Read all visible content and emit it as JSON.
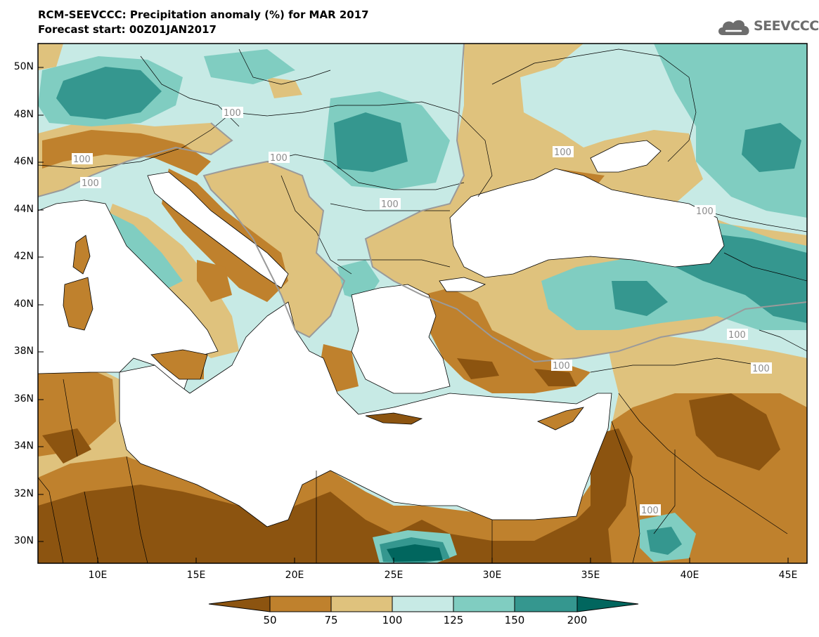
{
  "title_line1": "RCM-SEEVCCC: Precipitation anomaly (%) for MAR 2017",
  "title_line2": "Forecast start: 00Z01JAN2017",
  "logo_text": "SEEVCCC",
  "logo_icon": "cloud-icon",
  "lat_labels": [
    "50N",
    "48N",
    "46N",
    "44N",
    "42N",
    "40N",
    "38N",
    "36N",
    "34N",
    "32N",
    "30N"
  ],
  "lon_labels": [
    "10E",
    "15E",
    "20E",
    "25E",
    "30E",
    "35E",
    "40E",
    "45E"
  ],
  "contour_label": "100",
  "colorbar": {
    "levels": [
      "50",
      "75",
      "100",
      "125",
      "150",
      "200"
    ],
    "colors": [
      "#8c5410",
      "#bf812d",
      "#dfc27d",
      "#c7eae5",
      "#80cdc1",
      "#35978f",
      "#01665e"
    ]
  }
}
